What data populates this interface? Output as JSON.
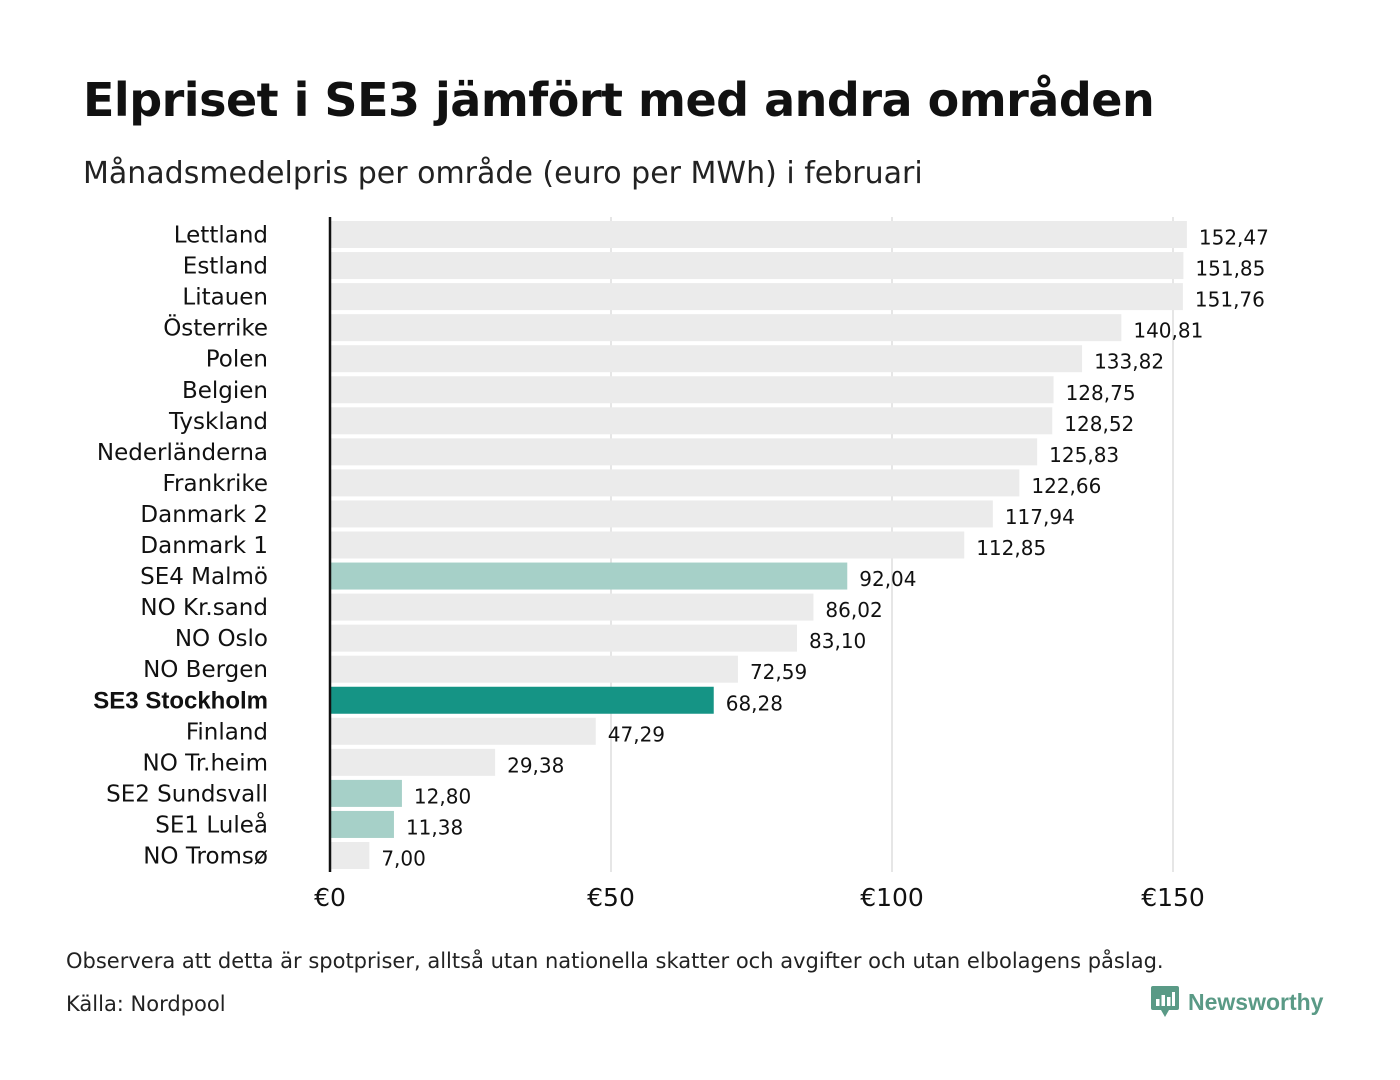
{
  "header": {
    "title": "Elpriset i SE3 jämfört med andra områden",
    "subtitle": "Månadsmedelpris per område (euro per MWh) i februari"
  },
  "footer": {
    "note": "Observera att detta är spotpriser, alltså utan nationella skatter och avgifter och utan elbolagens påslag.",
    "source": "Källa: Nordpool",
    "brand": "Newsworthy"
  },
  "colors": {
    "default_bar": "#ebebeb",
    "se_bar": "#a6d0c8",
    "highlight_bar": "#159485",
    "grid": "#cccccc",
    "axis": "#111111",
    "brand": "#5a9a86"
  },
  "chart_data": {
    "type": "bar",
    "orientation": "horizontal",
    "categories": [
      "Lettland",
      "Estland",
      "Litauen",
      "Österrike",
      "Polen",
      "Belgien",
      "Tyskland",
      "Nederländerna",
      "Frankrike",
      "Danmark 2",
      "Danmark 1",
      "SE4 Malmö",
      "NO Kr.sand",
      "NO Oslo",
      "NO Bergen",
      "SE3 Stockholm",
      "Finland",
      "NO Tr.heim",
      "SE2 Sundsvall",
      "SE1 Luleå",
      "NO Tromsø"
    ],
    "values": [
      152.47,
      151.85,
      151.76,
      140.81,
      133.82,
      128.75,
      128.52,
      125.83,
      122.66,
      117.94,
      112.85,
      92.04,
      86.02,
      83.1,
      72.59,
      68.28,
      47.29,
      29.38,
      12.8,
      11.38,
      7.0
    ],
    "value_labels": [
      "152,47",
      "151,85",
      "151,76",
      "140,81",
      "133,82",
      "128,75",
      "128,52",
      "125,83",
      "122,66",
      "117,94",
      "112,85",
      "92,04",
      "86,02",
      "83,10",
      "72,59",
      "68,28",
      "47,29",
      "29,38",
      "12,80",
      "11,38",
      "7,00"
    ],
    "bar_groups": [
      "other",
      "other",
      "other",
      "other",
      "other",
      "other",
      "other",
      "other",
      "other",
      "other",
      "other",
      "se",
      "other",
      "other",
      "other",
      "highlight",
      "other",
      "other",
      "se",
      "se",
      "other"
    ],
    "highlight_category": "SE3 Stockholm",
    "xlim": [
      0,
      160
    ],
    "xticks": [
      0,
      50,
      100,
      150
    ],
    "xtick_labels": [
      "€0",
      "€50",
      "€100",
      "€150"
    ],
    "grid": "vertical",
    "legend": "none"
  }
}
